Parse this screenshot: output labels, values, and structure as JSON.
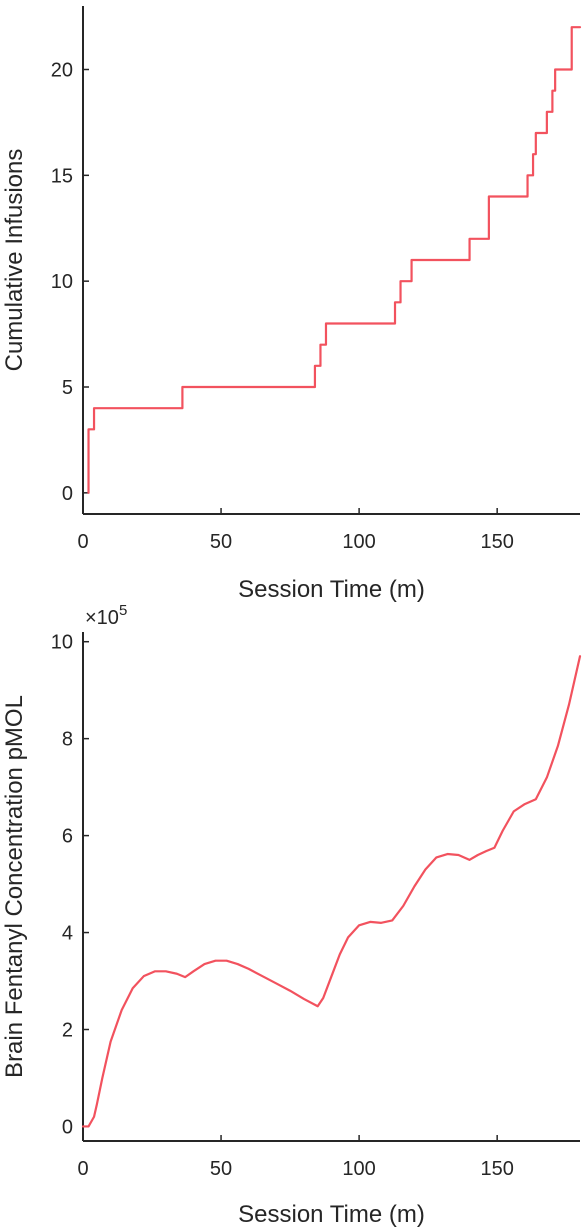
{
  "chart_data": [
    {
      "type": "line",
      "step": true,
      "xlabel": "Session Time (m)",
      "ylabel": "Cumulative Infusions",
      "xlim": [
        0,
        180
      ],
      "ylim": [
        -1,
        23
      ],
      "xticks": [
        0,
        50,
        100,
        150
      ],
      "yticks": [
        0,
        5,
        10,
        15,
        20
      ],
      "grid": false,
      "color": "#f2525e",
      "series": [
        {
          "x": [
            2,
            2,
            3,
            3,
            4,
            4,
            36,
            36,
            84,
            84,
            86,
            86,
            88,
            88,
            111,
            111,
            113,
            113,
            115,
            115,
            117,
            117,
            119,
            119,
            140,
            140,
            147,
            147,
            161,
            161,
            163,
            163,
            164,
            164,
            166,
            166,
            168,
            168,
            170,
            170,
            171,
            171,
            173,
            173,
            177,
            177,
            180
          ],
          "y": [
            0,
            3,
            3,
            3,
            3,
            4,
            4,
            5,
            5,
            6,
            6,
            7,
            7,
            8,
            8,
            8,
            8,
            9,
            9,
            10,
            10,
            10,
            10,
            11,
            11,
            12,
            12,
            14,
            14,
            15,
            15,
            16,
            16,
            17,
            17,
            17,
            17,
            18,
            18,
            19,
            19,
            20,
            20,
            20,
            20,
            22,
            22
          ]
        }
      ]
    },
    {
      "type": "line",
      "xlabel": "Session Time (m)",
      "ylabel": "Brain Fentanyl Concentration pMOL",
      "y_multiplier": "×10",
      "y_multiplier_exp": "5",
      "xlim": [
        0,
        180
      ],
      "ylim": [
        -0.3,
        10.2
      ],
      "xticks": [
        0,
        50,
        100,
        150
      ],
      "yticks": [
        0,
        2,
        4,
        6,
        8,
        10
      ],
      "grid": false,
      "color": "#f2525e",
      "series": [
        {
          "x": [
            0,
            2,
            3,
            4,
            5,
            7,
            10,
            14,
            18,
            22,
            26,
            30,
            34,
            37,
            40,
            44,
            48,
            52,
            56,
            60,
            65,
            70,
            75,
            80,
            85,
            87,
            90,
            93,
            96,
            100,
            104,
            108,
            112,
            116,
            120,
            124,
            128,
            132,
            136,
            140,
            143,
            146,
            149,
            152,
            156,
            160,
            164,
            168,
            172,
            176,
            180
          ],
          "y": [
            0,
            0,
            0.1,
            0.2,
            0.45,
            1.0,
            1.75,
            2.4,
            2.85,
            3.1,
            3.2,
            3.2,
            3.15,
            3.08,
            3.2,
            3.35,
            3.42,
            3.42,
            3.35,
            3.25,
            3.1,
            2.95,
            2.8,
            2.63,
            2.48,
            2.65,
            3.1,
            3.55,
            3.9,
            4.15,
            4.22,
            4.2,
            4.25,
            4.55,
            4.95,
            5.3,
            5.55,
            5.62,
            5.6,
            5.5,
            5.6,
            5.68,
            5.75,
            6.1,
            6.5,
            6.65,
            6.75,
            7.2,
            7.85,
            8.7,
            9.7
          ]
        }
      ]
    }
  ]
}
